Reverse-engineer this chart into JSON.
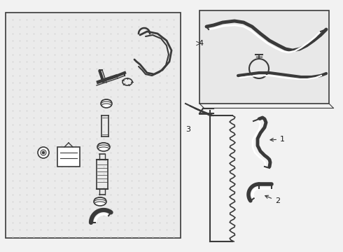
{
  "fig_width": 4.9,
  "fig_height": 3.6,
  "dpi": 100,
  "bg_color": "#f2f2f2",
  "white": "#ffffff",
  "black": "#1a1a1a",
  "line_color": "#3a3a3a",
  "dot_color": "#d8d8d8",
  "panel_bg": "#ebebeb",
  "inset_bg": "#e8e8e8"
}
